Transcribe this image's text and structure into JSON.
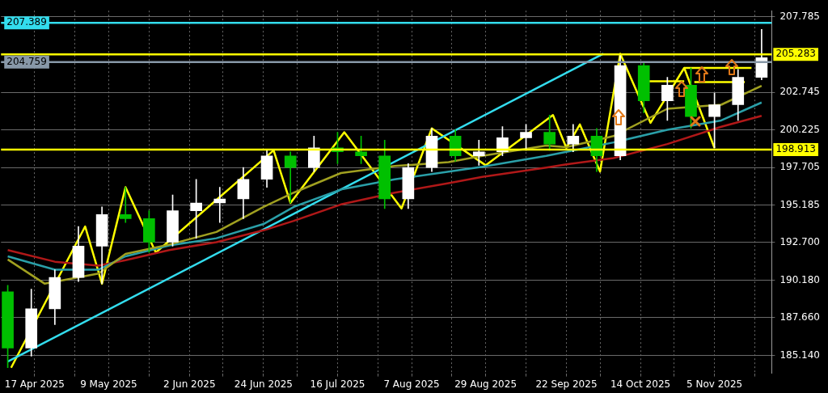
{
  "chart_data": {
    "type": "candlestick",
    "x": [
      "2025-04-09",
      "2025-04-16",
      "2025-04-23",
      "2025-04-30",
      "2025-05-07",
      "2025-05-14",
      "2025-05-21",
      "2025-05-28",
      "2025-06-04",
      "2025-06-11",
      "2025-06-18",
      "2025-06-25",
      "2025-07-02",
      "2025-07-09",
      "2025-07-16",
      "2025-07-23",
      "2025-07-30",
      "2025-08-06",
      "2025-08-13",
      "2025-08-20",
      "2025-08-27",
      "2025-09-03",
      "2025-09-10",
      "2025-09-17",
      "2025-09-24",
      "2025-10-01",
      "2025-10-08",
      "2025-10-15",
      "2025-10-22",
      "2025-10-29",
      "2025-11-05",
      "2025-11-12",
      "2025-11-19"
    ],
    "ohlc": [
      [
        189.4,
        189.83,
        184.32,
        185.63
      ],
      [
        185.63,
        189.57,
        185.1,
        188.26
      ],
      [
        188.26,
        190.88,
        187.21,
        190.36
      ],
      [
        190.36,
        193.77,
        190.09,
        192.45
      ],
      [
        192.45,
        195.08,
        189.94,
        194.56
      ],
      [
        194.56,
        196.39,
        194.03,
        194.29
      ],
      [
        194.29,
        194.82,
        192.03,
        192.72
      ],
      [
        192.72,
        195.87,
        192.45,
        194.82
      ],
      [
        194.82,
        196.92,
        192.98,
        195.34
      ],
      [
        195.34,
        196.39,
        194.03,
        195.61
      ],
      [
        195.61,
        197.71,
        194.29,
        196.92
      ],
      [
        196.92,
        198.86,
        196.39,
        198.49
      ],
      [
        198.49,
        198.76,
        195.34,
        197.71
      ],
      [
        197.71,
        199.81,
        197.44,
        199.02
      ],
      [
        199.02,
        200.07,
        197.97,
        198.76
      ],
      [
        198.76,
        199.81,
        197.97,
        198.49
      ],
      [
        198.49,
        199.54,
        194.97,
        195.61
      ],
      [
        195.61,
        197.97,
        194.97,
        197.71
      ],
      [
        197.71,
        200.33,
        197.44,
        199.81
      ],
      [
        199.81,
        200.23,
        198.13,
        198.49
      ],
      [
        198.49,
        199.54,
        197.86,
        198.76
      ],
      [
        198.76,
        200.44,
        198.49,
        199.7
      ],
      [
        199.7,
        200.59,
        198.86,
        200.07
      ],
      [
        200.07,
        201.22,
        198.86,
        199.28
      ],
      [
        199.28,
        200.59,
        198.76,
        199.81
      ],
      [
        199.81,
        200.33,
        197.44,
        198.49
      ],
      [
        198.49,
        205.32,
        198.23,
        204.53
      ],
      [
        204.53,
        204.79,
        201.38,
        202.17
      ],
      [
        202.17,
        203.74,
        200.86,
        203.22
      ],
      [
        203.22,
        204.37,
        200.33,
        201.12
      ],
      [
        201.12,
        202.69,
        199.02,
        201.91
      ],
      [
        201.91,
        204.27,
        200.86,
        203.74
      ],
      [
        203.74,
        206.95,
        203.58,
        205.06
      ]
    ],
    "colors": [
      "#00c000",
      "#ffffff",
      "#ffffff",
      "#ffffff",
      "#ffffff",
      "#00c000",
      "#00c000",
      "#ffffff",
      "#ffffff",
      "#ffffff",
      "#ffffff",
      "#ffffff",
      "#00c000",
      "#ffffff",
      "#00c000",
      "#00c000",
      "#00c000",
      "#ffffff",
      "#ffffff",
      "#00c000",
      "#ffffff",
      "#ffffff",
      "#ffffff",
      "#00c000",
      "#ffffff",
      "#00c000",
      "#ffffff",
      "#00c000",
      "#ffffff",
      "#00c000",
      "#ffffff",
      "#ffffff",
      "#ffffff"
    ],
    "series": [
      {
        "type": "line",
        "color": "#a0a020",
        "x": [
          "2025-04-09",
          "2025-04-20",
          "2025-05-06",
          "2025-05-14",
          "2025-05-27",
          "2025-06-10",
          "2025-06-24",
          "2025-07-03",
          "2025-07-17",
          "2025-08-02",
          "2025-08-18",
          "2025-08-28",
          "2025-09-16",
          "2025-09-22",
          "2025-10-06",
          "2025-10-22",
          "2025-11-07",
          "2025-11-19"
        ],
        "values": [
          191.56,
          189.94,
          190.62,
          191.93,
          192.56,
          193.4,
          195.08,
          196.03,
          197.34,
          197.81,
          198.07,
          198.49,
          199.18,
          199.07,
          199.81,
          201.64,
          201.91,
          203.17
        ]
      },
      {
        "type": "line",
        "color": "#2a9fa8",
        "x": [
          "2025-04-09",
          "2025-04-23",
          "2025-05-06",
          "2025-05-14",
          "2025-05-27",
          "2025-06-10",
          "2025-06-24",
          "2025-07-03",
          "2025-07-17",
          "2025-08-02",
          "2025-08-18",
          "2025-08-28",
          "2025-09-16",
          "2025-09-22",
          "2025-10-06",
          "2025-10-22",
          "2025-11-07",
          "2025-11-19"
        ],
        "values": [
          191.77,
          190.88,
          190.88,
          191.77,
          192.5,
          192.98,
          193.93,
          195.08,
          196.24,
          196.92,
          197.44,
          197.76,
          198.49,
          198.76,
          199.39,
          200.23,
          200.86,
          202.06
        ]
      },
      {
        "type": "line",
        "color": "#b01818",
        "x": [
          "2025-04-09",
          "2025-04-23",
          "2025-05-06",
          "2025-05-14",
          "2025-05-27",
          "2025-06-10",
          "2025-06-24",
          "2025-07-03",
          "2025-07-17",
          "2025-08-02",
          "2025-08-18",
          "2025-08-28",
          "2025-09-16",
          "2025-09-22",
          "2025-10-06",
          "2025-10-22",
          "2025-11-07",
          "2025-11-19"
        ],
        "values": [
          192.19,
          191.41,
          191.15,
          191.51,
          192.19,
          192.72,
          193.51,
          194.14,
          195.24,
          196.03,
          196.66,
          197.08,
          197.71,
          197.92,
          198.34,
          199.28,
          200.44,
          201.17
        ]
      },
      {
        "type": "line",
        "color": "#33ddee",
        "x": [
          "2025-04-09",
          "2025-10-03"
        ],
        "values": [
          184.73,
          205.32
        ]
      },
      {
        "type": "line",
        "color": "#ffff00",
        "x": [
          "2025-04-10",
          "2025-05-02",
          "2025-05-07",
          "2025-05-14",
          "2025-05-23",
          "2025-06-27",
          "2025-07-02",
          "2025-07-18",
          "2025-08-04",
          "2025-08-13",
          "2025-08-29",
          "2025-09-18",
          "2025-09-22",
          "2025-09-26",
          "2025-10-02",
          "2025-10-08",
          "2025-10-17",
          "2025-10-27",
          "2025-11-05"
        ],
        "values": [
          184.32,
          193.77,
          189.94,
          196.39,
          192.03,
          198.86,
          195.34,
          200.07,
          194.97,
          200.33,
          197.86,
          201.22,
          199.02,
          200.59,
          197.44,
          205.32,
          200.7,
          204.37,
          199.02
        ]
      },
      {
        "type": "line",
        "color": "#ffff00",
        "x": [
          "2025-10-16",
          "2025-10-27"
        ],
        "values": [
          203.48,
          203.48
        ]
      },
      {
        "type": "line",
        "color": "#ffff00",
        "x": [
          "2025-10-27",
          "2025-11-16"
        ],
        "values": [
          204.37,
          204.37
        ]
      },
      {
        "type": "line",
        "color": "#ffff00",
        "x": [
          "2025-10-30",
          "2025-11-14"
        ],
        "values": [
          203.43,
          203.43
        ]
      }
    ],
    "ref_lines": [
      {
        "axis": "y",
        "value": 207.389,
        "label": "207.389",
        "color": "#33ddee"
      },
      {
        "axis": "y",
        "value": 205.283,
        "label": "205.283",
        "color": "#ffff00"
      },
      {
        "axis": "y",
        "value": 204.759,
        "label": "204.759",
        "color": "#8898a8"
      },
      {
        "axis": "y",
        "value": 198.913,
        "label": "198.913",
        "color": "#ffff00"
      }
    ],
    "xlim": [
      "2025-04-07",
      "2025-11-22"
    ],
    "xticks": [
      {
        "value": "2025-04-17",
        "label": "17 Apr 2025"
      },
      {
        "value": "2025-04-29",
        "label": null
      },
      {
        "value": "2025-05-09",
        "label": "9 May 2025"
      },
      {
        "value": "2025-05-21",
        "label": null
      },
      {
        "value": "2025-06-02",
        "label": "2 Jun 2025"
      },
      {
        "value": "2025-06-12",
        "label": null
      },
      {
        "value": "2025-06-24",
        "label": "24 Jun 2025"
      },
      {
        "value": "2025-07-04",
        "label": null
      },
      {
        "value": "2025-07-16",
        "label": "16 Jul 2025"
      },
      {
        "value": "2025-07-28",
        "label": null
      },
      {
        "value": "2025-08-07",
        "label": "7 Aug 2025"
      },
      {
        "value": "2025-08-19",
        "label": null
      },
      {
        "value": "2025-08-29",
        "label": "29 Aug 2025"
      },
      {
        "value": "2025-09-10",
        "label": null
      },
      {
        "value": "2025-09-22",
        "label": "22 Sep 2025"
      },
      {
        "value": "2025-10-02",
        "label": null
      },
      {
        "value": "2025-10-14",
        "label": "14 Oct 2025"
      },
      {
        "value": "2025-10-24",
        "label": null
      },
      {
        "value": "2025-11-05",
        "label": "5 Nov 2025"
      },
      {
        "value": "2025-11-17",
        "label": null
      }
    ],
    "ylim": [
      183.95,
      208.2
    ],
    "yticks": [
      {
        "value": 185.14,
        "label": "185.140"
      },
      {
        "value": 187.66,
        "label": "187.660"
      },
      {
        "value": 190.18,
        "label": "190.180"
      },
      {
        "value": 192.7,
        "label": "192.700"
      },
      195.185,
      197.705,
      200.225,
      202.745,
      207.785
    ],
    "grid": true,
    "legend": false,
    "marker": "none"
  }
}
